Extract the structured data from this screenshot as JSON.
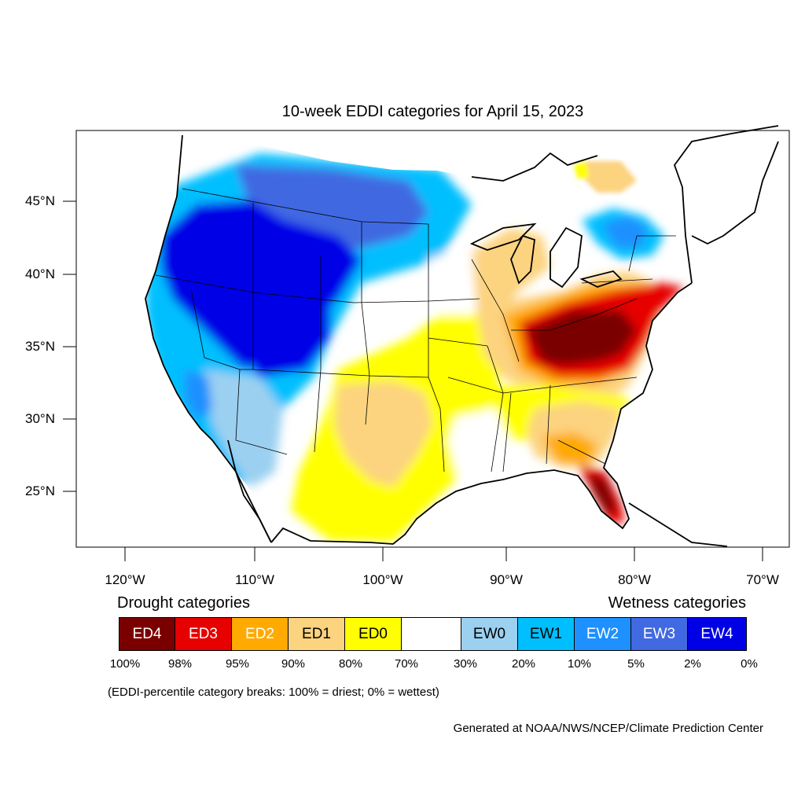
{
  "map": {
    "title": "10-week EDDI categories for April 15, 2023",
    "lat_labels": [
      "45°N",
      "40°N",
      "35°N",
      "30°N",
      "25°N"
    ],
    "lon_labels": [
      "120°W",
      "110°W",
      "100°W",
      "90°W",
      "80°W",
      "70°W"
    ]
  },
  "legend": {
    "drought_heading": "Drought categories",
    "wetness_heading": "Wetness categories",
    "categories": [
      {
        "label": "ED4",
        "color": "#7a0000",
        "text_color": "#ffffff"
      },
      {
        "label": "ED3",
        "color": "#e60000",
        "text_color": "#ffffff"
      },
      {
        "label": "ED2",
        "color": "#ffaa00",
        "text_color": "#ffffff"
      },
      {
        "label": "ED1",
        "color": "#fcd37f",
        "text_color": "#000000"
      },
      {
        "label": "ED0",
        "color": "#ffff00",
        "text_color": "#000000"
      },
      {
        "label": "",
        "color": "#ffffff",
        "text_color": "#000000"
      },
      {
        "label": "EW0",
        "color": "#9bd0f0",
        "text_color": "#000000"
      },
      {
        "label": "EW1",
        "color": "#00bfff",
        "text_color": "#000000"
      },
      {
        "label": "EW2",
        "color": "#1e90ff",
        "text_color": "#ffffff"
      },
      {
        "label": "EW3",
        "color": "#4169e1",
        "text_color": "#ffffff"
      },
      {
        "label": "EW4",
        "color": "#0000e6",
        "text_color": "#ffffff"
      }
    ],
    "percentiles": [
      "100%",
      "98%",
      "95%",
      "90%",
      "80%",
      "70%",
      "30%",
      "20%",
      "10%",
      "5%",
      "2%",
      "0%"
    ],
    "footnote": "(EDDI-percentile category breaks: 100% = driest; 0% = wettest)"
  },
  "credit": "Generated at NOAA/NWS/NCEP/Climate Prediction Center"
}
